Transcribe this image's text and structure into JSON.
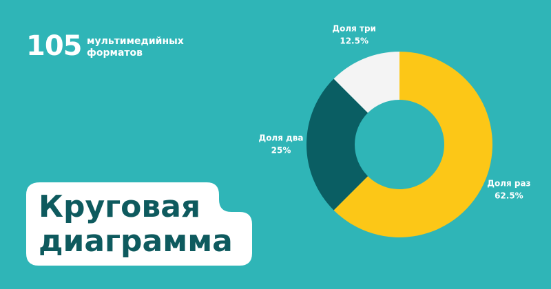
{
  "badge": {
    "number": "105",
    "caption": "мультимедийных форматов"
  },
  "chart_data": {
    "type": "donut",
    "title": "Круговая диаграмма",
    "categories": [
      "Доля раз",
      "Доля два",
      "Доля три"
    ],
    "values": [
      62.5,
      25,
      12.5
    ],
    "value_labels": [
      "62.5%",
      "25%",
      "12.5%"
    ],
    "colors": [
      "#fcc717",
      "#0a5e63",
      "#f4f4f4"
    ]
  }
}
